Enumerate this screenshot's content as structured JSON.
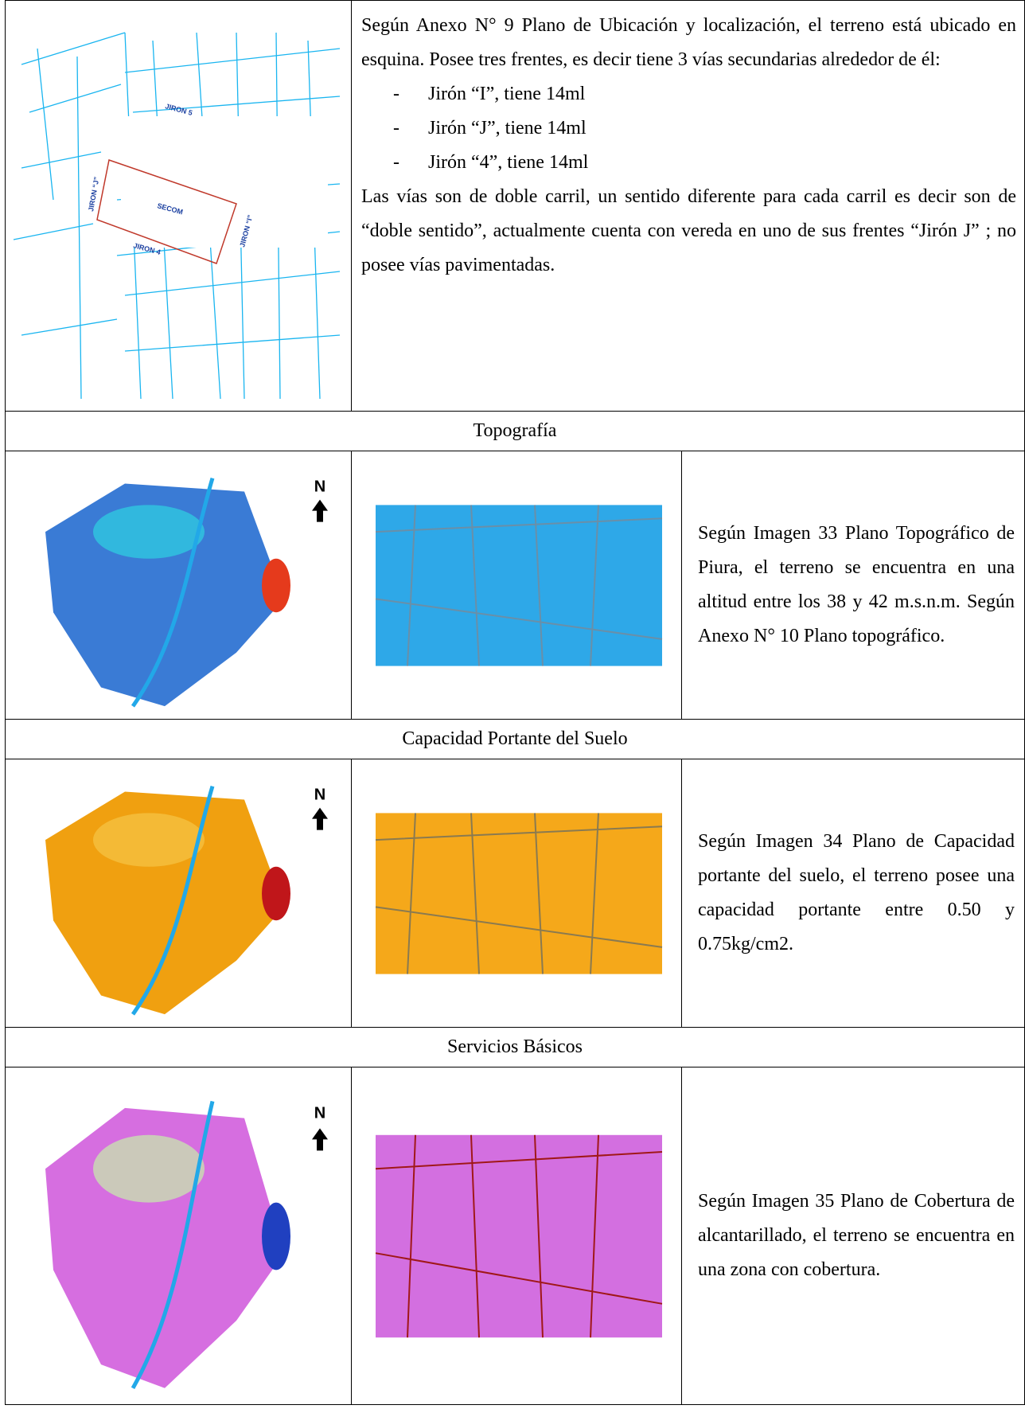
{
  "location": {
    "paragraph": "Según Anexo N° 9 Plano de Ubicación y localización, el terreno está ubicado en esquina. Posee tres frentes, es decir tiene 3 vías secundarias alrededor de él:",
    "items": [
      "Jirón “I”, tiene 14ml",
      "Jirón “J”, tiene 14ml",
      "Jirón “4”, tiene 14ml"
    ],
    "closing": "Las vías son de doble carril, un sentido diferente para cada carril es decir son de “doble sentido”, actualmente cuenta con vereda en uno de sus frentes “Jirón J” ; no posee vías pavimentadas.",
    "map_labels": [
      "JIRON 5",
      "JIRON “J”",
      "SECOM",
      "JIRON “I”",
      "JIRON 4"
    ]
  },
  "sections": [
    {
      "title": "Topografía",
      "north": "N",
      "text": "Según Imagen 33 Plano Topográfico de Piura, el terreno se encuentra en una altitud entre los 38 y 42 m.s.n.m. Según Anexo N° 10 Plano topográfico."
    },
    {
      "title": "Capacidad Portante del Suelo",
      "north": "N",
      "text": "Según Imagen 34 Plano de Capacidad portante del suelo, el terreno posee una capacidad portante entre 0.50 y 0.75kg/cm2."
    },
    {
      "title": "Servicios Básicos",
      "north": "N",
      "text": "Según Imagen 35 Plano de Cobertura de alcantarillado, el terreno se encuentra en una zona con cobertura."
    }
  ]
}
